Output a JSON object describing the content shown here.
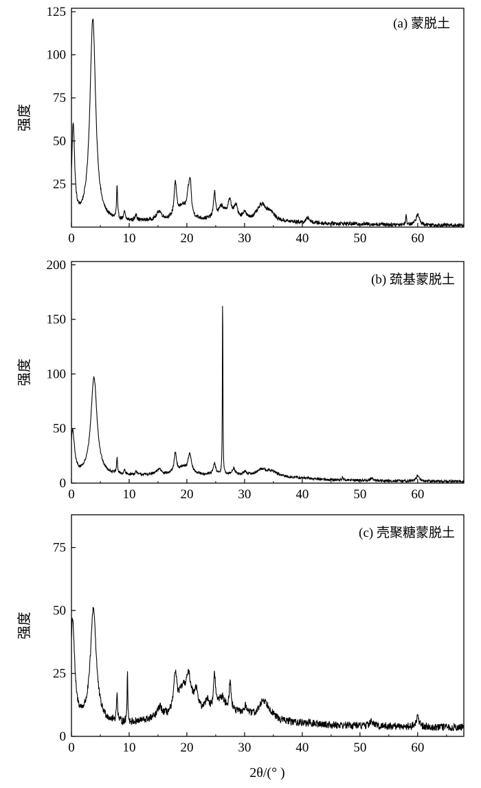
{
  "chart_data": [
    {
      "type": "line",
      "panel_label": "(a) 蒙脱土",
      "ylabel": "强度",
      "xlabel": "",
      "xlim": [
        0,
        68
      ],
      "ylim": [
        0,
        127
      ],
      "xticks": [
        0,
        10,
        20,
        30,
        40,
        50,
        60
      ],
      "yticks": [
        25,
        50,
        75,
        100,
        125
      ],
      "grid": false,
      "series": [
        {
          "peaks": [
            [
              0.3,
              55,
              0.3
            ],
            [
              3.7,
              118,
              0.6
            ],
            [
              7.9,
              19,
              0.1
            ],
            [
              9.2,
              5,
              0.12
            ],
            [
              11.2,
              4,
              0.15
            ],
            [
              15.2,
              5,
              0.5
            ],
            [
              18,
              20,
              0.25
            ],
            [
              19.2,
              7,
              0.8
            ],
            [
              20.3,
              13,
              0.35
            ],
            [
              20.6,
              15,
              0.2
            ],
            [
              24.8,
              15,
              0.2
            ],
            [
              26,
              7,
              0.6
            ],
            [
              27.4,
              10,
              0.4
            ],
            [
              28.5,
              7,
              0.4
            ],
            [
              30,
              4,
              0.3
            ],
            [
              33,
              9,
              1.0
            ],
            [
              34.5,
              4,
              0.8
            ],
            [
              41,
              3,
              0.3
            ],
            [
              58,
              5,
              0.1
            ],
            [
              60,
              6,
              0.35
            ]
          ],
          "baseline": [
            [
              0,
              2.5
            ],
            [
              10,
              3
            ],
            [
              18,
              4
            ],
            [
              28,
              4
            ],
            [
              35,
              3
            ],
            [
              45,
              2
            ],
            [
              55,
              1.5
            ],
            [
              68,
              1
            ]
          ],
          "noise": 1.1
        }
      ]
    },
    {
      "type": "line",
      "panel_label": "(b) 巯基蒙脱土",
      "ylabel": "强度",
      "xlabel": "",
      "xlim": [
        0,
        68
      ],
      "ylim": [
        0,
        203
      ],
      "xticks": [
        0,
        10,
        20,
        30,
        40,
        50,
        60
      ],
      "yticks": [
        0,
        50,
        100,
        150,
        200
      ],
      "grid": false,
      "series": [
        {
          "peaks": [
            [
              0.2,
              40,
              0.4
            ],
            [
              3.9,
              90,
              0.65
            ],
            [
              7.9,
              14,
              0.1
            ],
            [
              9.2,
              4,
              0.12
            ],
            [
              11.2,
              3,
              0.15
            ],
            [
              15.2,
              5,
              0.5
            ],
            [
              18,
              18,
              0.25
            ],
            [
              19.3,
              6,
              0.8
            ],
            [
              20.5,
              17,
              0.35
            ],
            [
              24.8,
              10,
              0.25
            ],
            [
              26.2,
              180,
              0.05
            ],
            [
              28.1,
              6,
              0.3
            ],
            [
              30.1,
              3,
              0.3
            ],
            [
              33,
              6,
              1.0
            ],
            [
              34.8,
              4,
              1.0
            ],
            [
              47,
              3,
              0.1
            ],
            [
              52,
              2,
              0.3
            ],
            [
              60,
              5,
              0.3
            ]
          ],
          "baseline": [
            [
              0,
              6
            ],
            [
              10,
              7
            ],
            [
              20,
              8
            ],
            [
              30,
              7
            ],
            [
              35,
              6
            ],
            [
              45,
              3
            ],
            [
              55,
              2
            ],
            [
              68,
              1.5
            ]
          ],
          "noise": 1.2
        }
      ]
    },
    {
      "type": "line",
      "panel_label": "(c) 壳聚糖蒙脱土",
      "ylabel": "强度",
      "xlabel": "2θ/(° )",
      "xlim": [
        0,
        68
      ],
      "ylim": [
        0,
        88
      ],
      "xticks": [
        0,
        10,
        20,
        30,
        40,
        50,
        60
      ],
      "yticks": [
        0,
        25,
        50,
        75
      ],
      "grid": false,
      "series": [
        {
          "peaks": [
            [
              0.2,
              40,
              0.4
            ],
            [
              3.8,
              45,
              0.6
            ],
            [
              7.9,
              12,
              0.1
            ],
            [
              9.7,
              22,
              0.07
            ],
            [
              15.3,
              4,
              0.5
            ],
            [
              18,
              15,
              0.3
            ],
            [
              19.2,
              8,
              0.8
            ],
            [
              20.3,
              13,
              0.6
            ],
            [
              21.6,
              8,
              0.4
            ],
            [
              23.5,
              5,
              0.4
            ],
            [
              24.8,
              14,
              0.2
            ],
            [
              26,
              6,
              0.8
            ],
            [
              27.5,
              11,
              0.2
            ],
            [
              30.2,
              3,
              0.4
            ],
            [
              33.2,
              6,
              0.8
            ],
            [
              34.2,
              3,
              1.0
            ],
            [
              52,
              2,
              0.3
            ],
            [
              60,
              4,
              0.3
            ]
          ],
          "baseline": [
            [
              0,
              6
            ],
            [
              10,
              5
            ],
            [
              18,
              8
            ],
            [
              28,
              9
            ],
            [
              35,
              6
            ],
            [
              45,
              4.5
            ],
            [
              55,
              4
            ],
            [
              68,
              3.5
            ]
          ],
          "noise": 1.5
        }
      ]
    }
  ]
}
